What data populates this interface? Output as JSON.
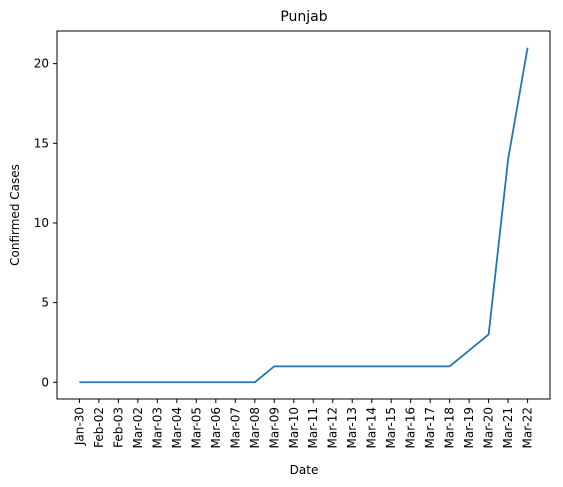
{
  "chart_data": {
    "type": "line",
    "title": "Punjab",
    "xlabel": "Date",
    "ylabel": "Confirmed Cases",
    "x": [
      "Jan-30",
      "Feb-02",
      "Feb-03",
      "Mar-02",
      "Mar-03",
      "Mar-04",
      "Mar-05",
      "Mar-06",
      "Mar-07",
      "Mar-08",
      "Mar-09",
      "Mar-10",
      "Mar-11",
      "Mar-12",
      "Mar-13",
      "Mar-14",
      "Mar-15",
      "Mar-16",
      "Mar-17",
      "Mar-18",
      "Mar-19",
      "Mar-20",
      "Mar-21",
      "Mar-22"
    ],
    "series": [
      {
        "values": [
          0,
          0,
          0,
          0,
          0,
          0,
          0,
          0,
          0,
          0,
          1,
          1,
          1,
          1,
          1,
          1,
          1,
          1,
          1,
          1,
          2,
          3,
          14,
          21
        ]
      }
    ],
    "yticks": [
      0,
      5,
      10,
      15,
      20
    ],
    "ylim": [
      -1.05,
      22.05
    ],
    "grid": false,
    "legend": "none",
    "line_color": "#1f77b4"
  }
}
